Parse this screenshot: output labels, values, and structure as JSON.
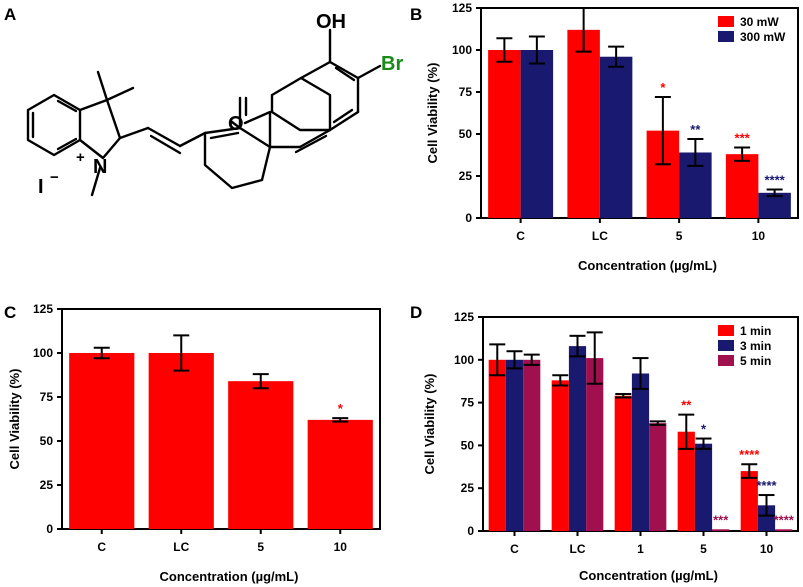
{
  "colors": {
    "red": "#ff0000",
    "blue": "#191970",
    "maroon": "#a0104f",
    "green": "#1a8a1a",
    "black": "#000000"
  },
  "panels": {
    "a": {
      "label": "A",
      "atoms": {
        "oh": "OH",
        "br": "Br",
        "o": "O",
        "n": "N",
        "i": "I",
        "plus": "+",
        "minus": "−"
      }
    }
  },
  "chart_data": [
    {
      "panel": "B",
      "type": "bar",
      "title": "",
      "xlabel": "Concentration (µg/mL)",
      "ylabel": "Cell Viability (%)",
      "ylim": [
        0,
        125
      ],
      "yticks": [
        "0",
        "25",
        "50",
        "75",
        "100",
        "125"
      ],
      "categories": [
        "C",
        "LC",
        "5",
        "10"
      ],
      "legend_position": "top-right",
      "series": [
        {
          "name": "30 mW",
          "color": "#ff0000",
          "values": [
            100,
            112,
            52,
            38
          ],
          "errors": [
            7,
            13,
            20,
            4
          ],
          "sig": [
            "",
            "",
            "*",
            "***"
          ]
        },
        {
          "name": "300 mW",
          "color": "#191970",
          "values": [
            100,
            96,
            39,
            15
          ],
          "errors": [
            8,
            6,
            8,
            2
          ],
          "sig": [
            "",
            "",
            "**",
            "****"
          ]
        }
      ]
    },
    {
      "panel": "C",
      "type": "bar",
      "title": "",
      "xlabel": "Concentration (µg/mL)",
      "ylabel": "Cell Viability (%)",
      "ylim": [
        0,
        125
      ],
      "yticks": [
        "0",
        "25",
        "50",
        "75",
        "100",
        "125"
      ],
      "categories": [
        "C",
        "LC",
        "5",
        "10"
      ],
      "legend_position": "none",
      "series": [
        {
          "name": "",
          "color": "#ff0000",
          "values": [
            100,
            100,
            84,
            62
          ],
          "errors": [
            3,
            10,
            4,
            1
          ],
          "sig": [
            "",
            "",
            "",
            "*"
          ]
        }
      ]
    },
    {
      "panel": "D",
      "type": "bar",
      "title": "",
      "xlabel": "Concentration (µg/mL)",
      "ylabel": "Cell Viability (%)",
      "ylim": [
        0,
        125
      ],
      "yticks": [
        "0",
        "25",
        "50",
        "75",
        "100",
        "125"
      ],
      "categories": [
        "C",
        "LC",
        "1",
        "5",
        "10"
      ],
      "legend_position": "top-right",
      "series": [
        {
          "name": "1 min",
          "color": "#ff0000",
          "values": [
            100,
            88,
            79,
            58,
            35
          ],
          "errors": [
            9,
            3,
            1,
            10,
            4
          ],
          "sig": [
            "",
            "",
            "",
            "**",
            "****"
          ]
        },
        {
          "name": "3 min",
          "color": "#191970",
          "values": [
            100,
            108,
            92,
            51,
            15
          ],
          "errors": [
            5,
            6,
            9,
            3,
            6
          ],
          "sig": [
            "",
            "",
            "",
            "*",
            "****"
          ]
        },
        {
          "name": "5 min",
          "color": "#a0104f",
          "values": [
            100,
            101,
            63,
            1,
            1
          ],
          "errors": [
            3,
            15,
            1,
            0,
            0
          ],
          "sig": [
            "",
            "",
            "",
            "***",
            "****"
          ]
        }
      ]
    }
  ]
}
